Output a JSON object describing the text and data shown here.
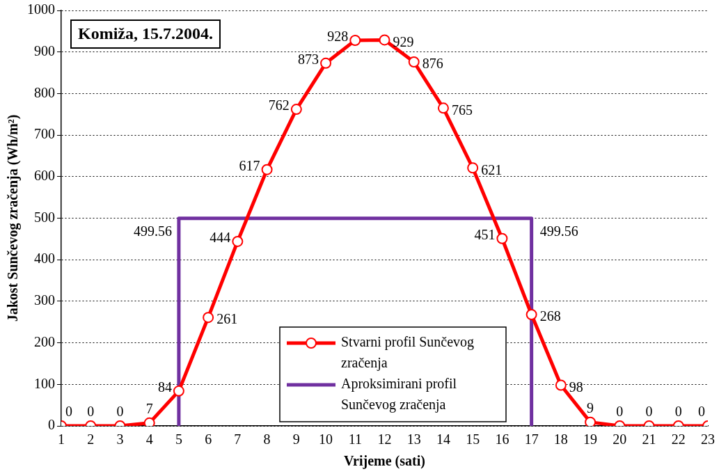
{
  "chart_data": {
    "type": "line",
    "title": "Komiža, 15.7.2004.",
    "xlabel": "Vrijeme (sati)",
    "ylabel": "Jakost Sunčevog zračenja (Wh/m²)",
    "xlim": [
      1,
      23
    ],
    "xticks": [
      1,
      2,
      3,
      4,
      5,
      6,
      7,
      8,
      9,
      10,
      11,
      12,
      13,
      14,
      15,
      16,
      17,
      18,
      19,
      20,
      21,
      22,
      23
    ],
    "ylim": [
      0,
      1000
    ],
    "yticks": [
      0,
      100,
      200,
      300,
      400,
      500,
      600,
      700,
      800,
      900,
      1000
    ],
    "grid": "y",
    "legend": "bottom",
    "series": [
      {
        "name": "Stvarni profil Sunčevog zračenja",
        "color": "#ff0000",
        "marker": "circle",
        "x": [
          1,
          2,
          3,
          4,
          5,
          6,
          7,
          8,
          9,
          10,
          11,
          12,
          13,
          14,
          15,
          16,
          17,
          18,
          19,
          20,
          21,
          22,
          23
        ],
        "values": [
          0,
          0,
          0,
          7,
          84,
          261,
          444,
          617,
          762,
          873,
          928,
          929,
          876,
          765,
          621,
          451,
          268,
          98,
          9,
          0,
          0,
          0,
          0
        ],
        "value_labels": [
          "0",
          "0",
          "0",
          "7",
          "84",
          "261",
          "444",
          "617",
          "762",
          "873",
          "928",
          "929",
          "876",
          "765",
          "621",
          "451",
          "268",
          "98",
          "9",
          "0",
          "0",
          "0",
          "0"
        ]
      },
      {
        "name": "Aproksimirani profil Sunčevog zračenja",
        "color": "#7030a0",
        "marker": "none",
        "x": [
          5,
          5,
          17,
          17
        ],
        "values": [
          0,
          499.56,
          499.56,
          0
        ],
        "value_labels": [
          null,
          "499.56",
          "499.56",
          null
        ]
      }
    ]
  }
}
